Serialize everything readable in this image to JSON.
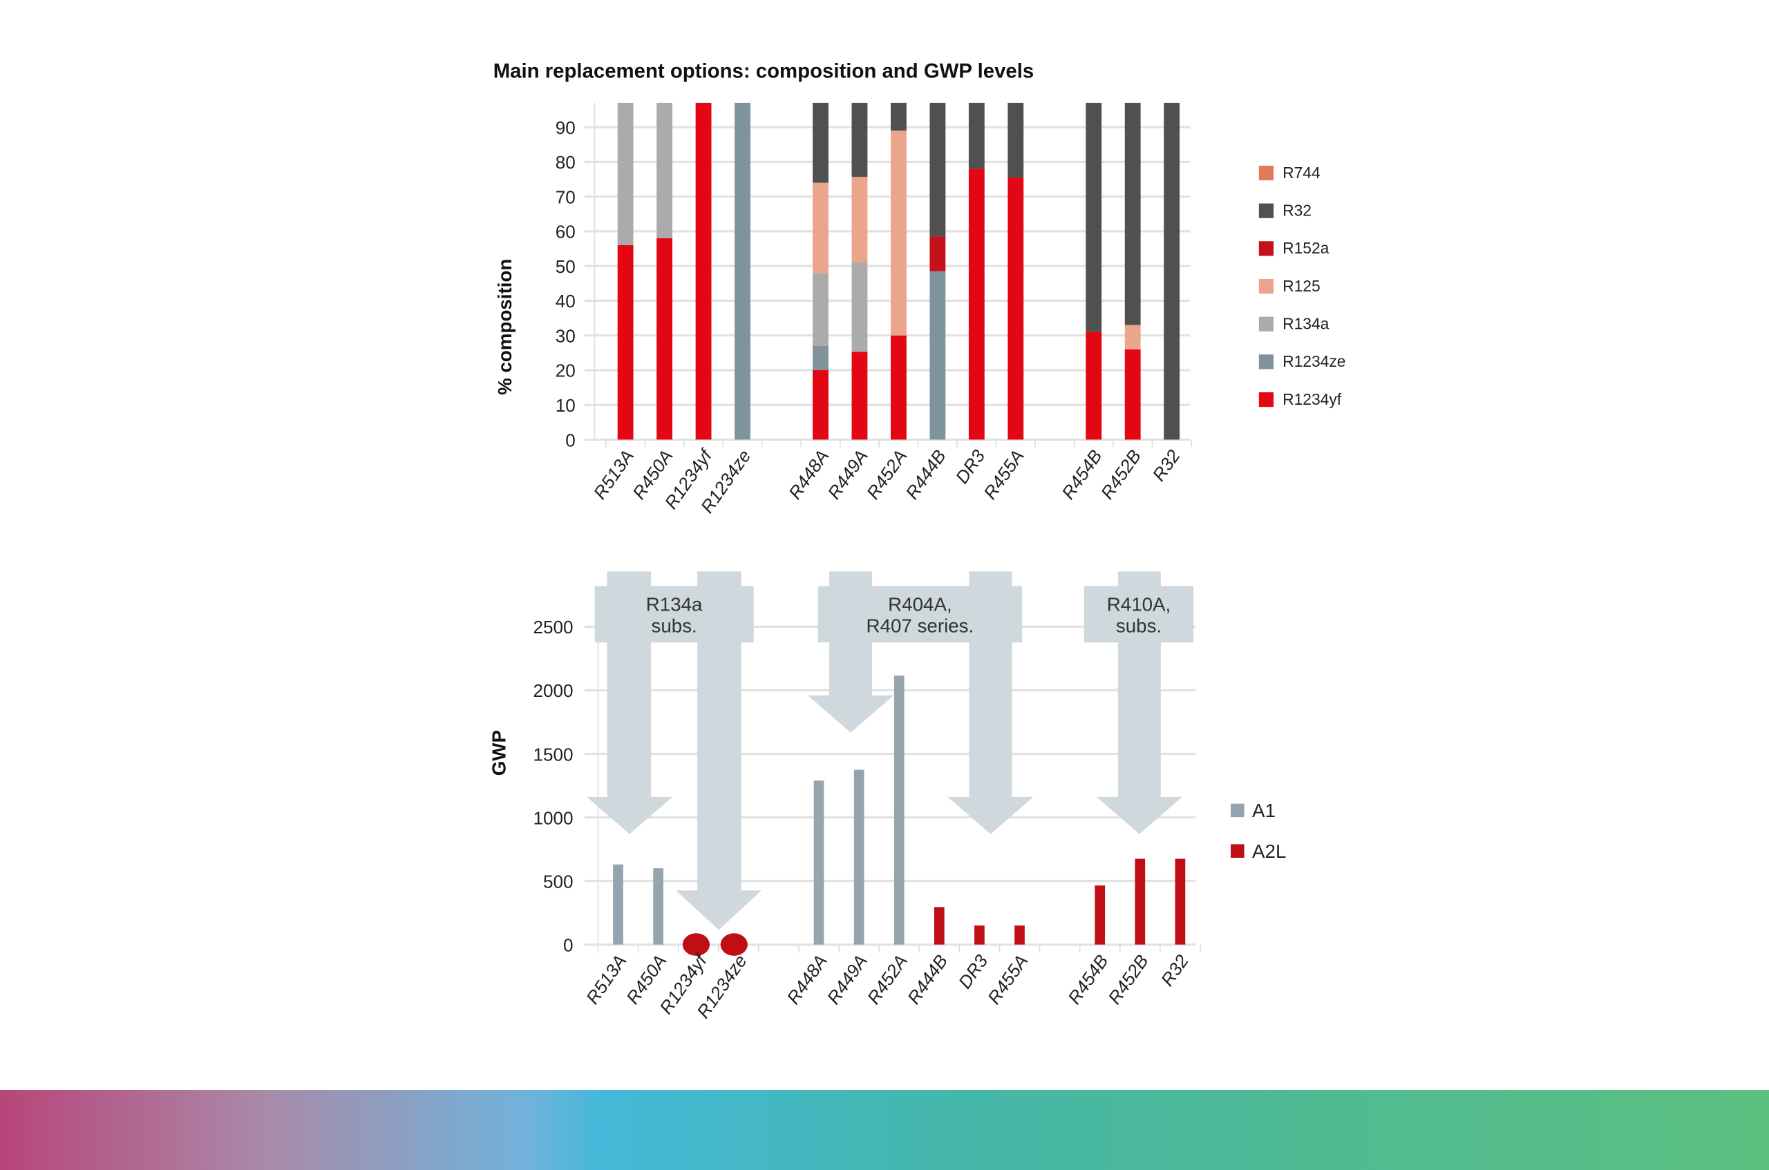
{
  "chart_data": [
    {
      "type": "bar",
      "stacked": true,
      "title": "Main replacement options: composition and GWP levels",
      "xlabel": "",
      "ylabel": "% composition",
      "ylim": [
        0,
        97
      ],
      "yticks": [
        "0",
        "10",
        "20",
        "30",
        "40",
        "50",
        "60",
        "70",
        "80",
        "90"
      ],
      "grid": true,
      "legend_position": "right",
      "categories": [
        "R513A",
        "R450A",
        "R1234yf",
        "R1234ze",
        "",
        "R448A",
        "R449A",
        "R452A",
        "R444B",
        "DR3",
        "R455A",
        "",
        "R454B",
        "R452B",
        "R32"
      ],
      "series": [
        {
          "name": "R1234yf",
          "color": "#e30613",
          "values": [
            56,
            58,
            100,
            0,
            null,
            20,
            25.3,
            30,
            0,
            78,
            75.5,
            null,
            31,
            26,
            0
          ]
        },
        {
          "name": "R1234ze",
          "color": "#7f939c",
          "values": [
            0,
            0,
            0,
            100,
            null,
            7,
            0,
            0,
            48.5,
            0,
            0,
            null,
            0,
            0,
            0
          ]
        },
        {
          "name": "R134a",
          "color": "#ababab",
          "values": [
            44,
            42,
            0,
            0,
            null,
            21,
            25.7,
            0,
            0,
            0,
            0,
            null,
            0,
            0,
            0
          ]
        },
        {
          "name": "R125",
          "color": "#eba58b",
          "values": [
            0,
            0,
            0,
            0,
            null,
            26,
            24.7,
            59,
            0,
            0,
            0,
            null,
            0,
            7,
            0
          ]
        },
        {
          "name": "R152a",
          "color": "#c4111a",
          "values": [
            0,
            0,
            0,
            0,
            null,
            0,
            0,
            0,
            10,
            0,
            0,
            null,
            0,
            0,
            0
          ]
        },
        {
          "name": "R32",
          "color": "#505050",
          "values": [
            0,
            0,
            0,
            0,
            null,
            26,
            24.3,
            11,
            41.5,
            22,
            21.5,
            null,
            69,
            67,
            100
          ]
        },
        {
          "name": "R744",
          "color": "#e07a5a",
          "values": [
            0,
            0,
            0,
            0,
            null,
            0,
            0,
            0,
            0,
            0,
            3,
            null,
            0,
            0,
            0
          ]
        }
      ],
      "legend_order": [
        "R744",
        "R32",
        "R152a",
        "R125",
        "R134a",
        "R1234ze",
        "R1234yf"
      ]
    },
    {
      "type": "bar",
      "title": "",
      "xlabel": "",
      "ylabel": "GWP",
      "ylim": [
        0,
        2500
      ],
      "yticks": [
        "0",
        "500",
        "1000",
        "1500",
        "2000",
        "2500"
      ],
      "grid": true,
      "legend_position": "right",
      "categories": [
        "R513A",
        "R450A",
        "R1234yf",
        "R1234ze",
        "",
        "R448A",
        "R449A",
        "R452A",
        "R444B",
        "DR3",
        "R455A",
        "",
        "R454B",
        "R452B",
        "R32"
      ],
      "values": [
        630,
        600,
        1,
        1,
        null,
        1290,
        1375,
        2115,
        295,
        150,
        150,
        null,
        465,
        675,
        675
      ],
      "safety_class": [
        "A1",
        "A1",
        "A2L",
        "A2L",
        null,
        "A1",
        "A1",
        "A1",
        "A2L",
        "A2L",
        "A2L",
        null,
        "A2L",
        "A2L",
        "A2L"
      ],
      "legend": [
        {
          "name": "A1",
          "color": "#95a5ae"
        },
        {
          "name": "A2L",
          "color": "#c00f14"
        }
      ],
      "annotations": [
        {
          "lines": [
            "R134a",
            "subs."
          ],
          "points_to": [
            "R513A",
            "R450A",
            "R1234yf",
            "R1234ze"
          ]
        },
        {
          "lines": [
            "R404A,",
            "R407 series."
          ],
          "points_to": [
            "R448A",
            "R449A",
            "R452A",
            "R444B",
            "DR3",
            "R455A"
          ]
        },
        {
          "lines": [
            "R410A,",
            "subs."
          ],
          "points_to": [
            "R454B",
            "R452B",
            "R32"
          ]
        }
      ]
    }
  ]
}
